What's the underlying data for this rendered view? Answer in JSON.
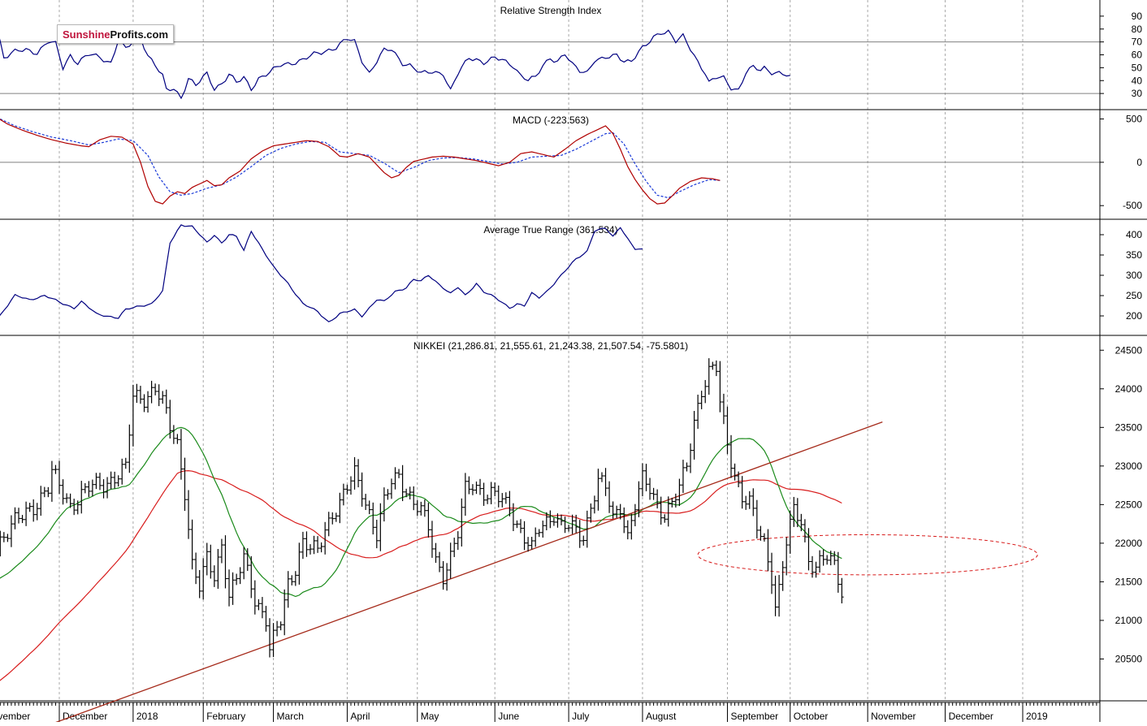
{
  "logo": {
    "part1": "Sunshine",
    "part2": "Profits.com"
  },
  "colors": {
    "price": "#000000",
    "ma_short": "#1a8a1a",
    "ma_long": "#d81c1c",
    "trendline": "#a52a1a",
    "macd": "#b00000",
    "signal": "#1a3ad8",
    "rsi": "#000080",
    "atr": "#000080",
    "grid": "#a8a8a8"
  },
  "x_axis": {
    "months": [
      {
        "label": "ovember",
        "i": -17
      },
      {
        "label": "December",
        "i": 2
      },
      {
        "label": "2018",
        "i": 22
      },
      {
        "label": "February",
        "i": 41
      },
      {
        "label": "March",
        "i": 60
      },
      {
        "label": "April",
        "i": 80
      },
      {
        "label": "May",
        "i": 99
      },
      {
        "label": "June",
        "i": 120
      },
      {
        "label": "July",
        "i": 140
      },
      {
        "label": "August",
        "i": 160
      },
      {
        "label": "September",
        "i": 183
      },
      {
        "label": "October",
        "i": 200
      },
      {
        "label": "November",
        "i": 221
      },
      {
        "label": "December",
        "i": 242
      },
      {
        "label": "2019",
        "i": 263
      }
    ]
  },
  "panels": {
    "rsi": {
      "title": "Relative Strength Index",
      "ticks": [
        90,
        80,
        70,
        60,
        50,
        40,
        30
      ],
      "ylim": [
        20,
        100
      ],
      "levels": [
        70,
        30
      ]
    },
    "macd": {
      "title": "MACD (-223.563)",
      "ticks": [
        500,
        0,
        -500
      ],
      "ylim": [
        -620,
        570
      ],
      "levels": [
        0
      ]
    },
    "atr": {
      "title": "Average True Range (361.534)",
      "ticks": [
        400,
        350,
        300,
        250,
        200
      ],
      "ylim": [
        160,
        430
      ]
    },
    "price": {
      "title": "NIKKEI (21,286.81, 21,555.61, 21,243.38, 21,507.54, -75.5801)",
      "ticks": [
        24500,
        24000,
        23500,
        23000,
        22500,
        22000,
        21500,
        21000,
        20500
      ],
      "ylim": [
        20000,
        24650
      ]
    }
  },
  "chart_data": {
    "type": "line",
    "x_index_range": [
      -15,
      238
    ],
    "trendline": {
      "from": [
        -15,
        19400
      ],
      "to": [
        225,
        23570
      ]
    },
    "ellipse": {
      "center_i": 221,
      "center_y": 21850,
      "half_width_i": 20,
      "half_height": 260
    },
    "price_anchors": [
      [
        0,
        22900
      ],
      [
        5,
        22500
      ],
      [
        10,
        22700
      ],
      [
        15,
        22800
      ],
      [
        20,
        22950
      ],
      [
        22,
        23900
      ],
      [
        25,
        23900
      ],
      [
        28,
        24000
      ],
      [
        30,
        23800
      ],
      [
        32,
        23500
      ],
      [
        34,
        23300
      ],
      [
        36,
        22700
      ],
      [
        38,
        21700
      ],
      [
        40,
        21400
      ],
      [
        42,
        21800
      ],
      [
        44,
        21600
      ],
      [
        46,
        22000
      ],
      [
        48,
        21300
      ],
      [
        50,
        21500
      ],
      [
        52,
        21800
      ],
      [
        54,
        21500
      ],
      [
        55,
        21300
      ],
      [
        58,
        21000
      ],
      [
        59,
        20600
      ],
      [
        62,
        21000
      ],
      [
        64,
        21500
      ],
      [
        66,
        21700
      ],
      [
        68,
        22000
      ],
      [
        70,
        21900
      ],
      [
        72,
        21900
      ],
      [
        74,
        22200
      ],
      [
        76,
        22400
      ],
      [
        78,
        22500
      ],
      [
        80,
        22700
      ],
      [
        82,
        22900
      ],
      [
        84,
        22700
      ],
      [
        86,
        22400
      ],
      [
        88,
        22100
      ],
      [
        90,
        22500
      ],
      [
        92,
        22800
      ],
      [
        94,
        22900
      ],
      [
        96,
        22700
      ],
      [
        98,
        22500
      ],
      [
        100,
        22400
      ],
      [
        102,
        22200
      ],
      [
        104,
        21800
      ],
      [
        106,
        21600
      ],
      [
        108,
        21800
      ],
      [
        110,
        22100
      ],
      [
        112,
        22700
      ],
      [
        114,
        22800
      ],
      [
        116,
        22700
      ],
      [
        118,
        22600
      ],
      [
        120,
        22600
      ],
      [
        122,
        22550
      ],
      [
        124,
        22500
      ],
      [
        126,
        22250
      ],
      [
        128,
        22050
      ],
      [
        130,
        21900
      ],
      [
        132,
        22200
      ],
      [
        134,
        22300
      ],
      [
        136,
        22400
      ],
      [
        138,
        22200
      ],
      [
        140,
        22200
      ],
      [
        142,
        22150
      ],
      [
        144,
        22100
      ],
      [
        146,
        22500
      ],
      [
        148,
        22800
      ],
      [
        150,
        22700
      ],
      [
        152,
        22300
      ],
      [
        154,
        22500
      ],
      [
        156,
        22100
      ],
      [
        158,
        22500
      ],
      [
        160,
        22800
      ],
      [
        162,
        22700
      ],
      [
        164,
        22500
      ],
      [
        166,
        22400
      ],
      [
        168,
        22500
      ],
      [
        170,
        22700
      ],
      [
        172,
        23000
      ],
      [
        174,
        23600
      ],
      [
        176,
        24000
      ],
      [
        178,
        24200
      ],
      [
        180,
        24250
      ],
      [
        181,
        23800
      ],
      [
        183,
        23300
      ],
      [
        185,
        22900
      ],
      [
        187,
        22600
      ],
      [
        189,
        22500
      ],
      [
        191,
        22200
      ],
      [
        193,
        22000
      ],
      [
        195,
        21600
      ],
      [
        196,
        21200
      ],
      [
        197,
        21400
      ],
      [
        199,
        22000
      ],
      [
        201,
        22400
      ],
      [
        203,
        22300
      ],
      [
        205,
        21800
      ],
      [
        207,
        21700
      ],
      [
        210,
        21800
      ],
      [
        212,
        21700
      ],
      [
        214,
        21400
      ]
    ],
    "rsi_anchors": [
      [
        -15,
        82
      ],
      [
        -13,
        58
      ],
      [
        -10,
        62
      ],
      [
        -7,
        64
      ],
      [
        -4,
        62
      ],
      [
        -1,
        70
      ],
      [
        1,
        68
      ],
      [
        3,
        50
      ],
      [
        5,
        60
      ],
      [
        7,
        54
      ],
      [
        10,
        60
      ],
      [
        13,
        58
      ],
      [
        16,
        54
      ],
      [
        18,
        72
      ],
      [
        20,
        64
      ],
      [
        22,
        70
      ],
      [
        24,
        74
      ],
      [
        26,
        60
      ],
      [
        28,
        52
      ],
      [
        30,
        43
      ],
      [
        31,
        32
      ],
      [
        33,
        34
      ],
      [
        35,
        27
      ],
      [
        37,
        42
      ],
      [
        39,
        36
      ],
      [
        42,
        45
      ],
      [
        44,
        34
      ],
      [
        46,
        38
      ],
      [
        48,
        45
      ],
      [
        50,
        38
      ],
      [
        52,
        42
      ],
      [
        54,
        34
      ],
      [
        56,
        42
      ],
      [
        59,
        46
      ],
      [
        62,
        52
      ],
      [
        65,
        54
      ],
      [
        68,
        56
      ],
      [
        71,
        60
      ],
      [
        74,
        63
      ],
      [
        77,
        66
      ],
      [
        80,
        72
      ],
      [
        82,
        70
      ],
      [
        84,
        56
      ],
      [
        86,
        46
      ],
      [
        88,
        55
      ],
      [
        90,
        63
      ],
      [
        92,
        64
      ],
      [
        95,
        54
      ],
      [
        97,
        52
      ],
      [
        100,
        45
      ],
      [
        103,
        47
      ],
      [
        106,
        46
      ],
      [
        108,
        32
      ],
      [
        110,
        45
      ],
      [
        113,
        58
      ],
      [
        115,
        57
      ],
      [
        117,
        54
      ],
      [
        120,
        57
      ],
      [
        122,
        56
      ],
      [
        125,
        52
      ],
      [
        127,
        44
      ],
      [
        129,
        40
      ],
      [
        131,
        42
      ],
      [
        133,
        52
      ],
      [
        135,
        58
      ],
      [
        137,
        55
      ],
      [
        139,
        60
      ],
      [
        141,
        52
      ],
      [
        143,
        48
      ],
      [
        145,
        47
      ],
      [
        147,
        56
      ],
      [
        149,
        56
      ],
      [
        151,
        58
      ],
      [
        153,
        60
      ],
      [
        155,
        56
      ],
      [
        157,
        55
      ],
      [
        159,
        62
      ],
      [
        161,
        67
      ],
      [
        163,
        74
      ],
      [
        165,
        78
      ],
      [
        167,
        78
      ],
      [
        169,
        70
      ],
      [
        171,
        74
      ],
      [
        173,
        65
      ],
      [
        175,
        55
      ],
      [
        177,
        46
      ],
      [
        178,
        38
      ],
      [
        180,
        42
      ],
      [
        182,
        42
      ],
      [
        184,
        35
      ],
      [
        186,
        33
      ],
      [
        188,
        46
      ],
      [
        190,
        50
      ],
      [
        192,
        48
      ],
      [
        193,
        50
      ],
      [
        195,
        47
      ],
      [
        197,
        46
      ],
      [
        199,
        44
      ],
      [
        200,
        42
      ]
    ],
    "macd_anchors": [
      [
        -15,
        520
      ],
      [
        -12,
        440
      ],
      [
        -8,
        370
      ],
      [
        -4,
        310
      ],
      [
        0,
        260
      ],
      [
        4,
        220
      ],
      [
        8,
        190
      ],
      [
        10,
        180
      ],
      [
        13,
        260
      ],
      [
        16,
        300
      ],
      [
        19,
        290
      ],
      [
        22,
        210
      ],
      [
        24,
        0
      ],
      [
        26,
        -280
      ],
      [
        28,
        -450
      ],
      [
        30,
        -480
      ],
      [
        32,
        -390
      ],
      [
        34,
        -340
      ],
      [
        36,
        -360
      ],
      [
        38,
        -290
      ],
      [
        40,
        -250
      ],
      [
        42,
        -210
      ],
      [
        44,
        -270
      ],
      [
        46,
        -260
      ],
      [
        48,
        -180
      ],
      [
        51,
        -100
      ],
      [
        54,
        40
      ],
      [
        57,
        130
      ],
      [
        60,
        190
      ],
      [
        63,
        210
      ],
      [
        66,
        230
      ],
      [
        69,
        250
      ],
      [
        72,
        240
      ],
      [
        75,
        180
      ],
      [
        78,
        70
      ],
      [
        80,
        60
      ],
      [
        83,
        100
      ],
      [
        86,
        60
      ],
      [
        88,
        -30
      ],
      [
        90,
        -120
      ],
      [
        92,
        -180
      ],
      [
        94,
        -150
      ],
      [
        96,
        -60
      ],
      [
        98,
        10
      ],
      [
        100,
        30
      ],
      [
        103,
        60
      ],
      [
        106,
        70
      ],
      [
        109,
        60
      ],
      [
        112,
        40
      ],
      [
        115,
        20
      ],
      [
        118,
        -10
      ],
      [
        121,
        -40
      ],
      [
        124,
        0
      ],
      [
        127,
        100
      ],
      [
        130,
        120
      ],
      [
        133,
        90
      ],
      [
        136,
        60
      ],
      [
        139,
        150
      ],
      [
        142,
        250
      ],
      [
        145,
        320
      ],
      [
        148,
        380
      ],
      [
        150,
        420
      ],
      [
        152,
        330
      ],
      [
        154,
        150
      ],
      [
        156,
        -50
      ],
      [
        158,
        -200
      ],
      [
        160,
        -320
      ],
      [
        162,
        -420
      ],
      [
        164,
        -480
      ],
      [
        166,
        -470
      ],
      [
        168,
        -390
      ],
      [
        170,
        -300
      ],
      [
        173,
        -220
      ],
      [
        176,
        -180
      ],
      [
        179,
        -190
      ],
      [
        181,
        -210
      ]
    ],
    "signal_anchors": [
      [
        -15,
        520
      ],
      [
        -10,
        420
      ],
      [
        -5,
        350
      ],
      [
        0,
        290
      ],
      [
        5,
        250
      ],
      [
        10,
        200
      ],
      [
        14,
        230
      ],
      [
        18,
        270
      ],
      [
        22,
        250
      ],
      [
        26,
        80
      ],
      [
        29,
        -170
      ],
      [
        32,
        -340
      ],
      [
        35,
        -380
      ],
      [
        38,
        -360
      ],
      [
        42,
        -300
      ],
      [
        46,
        -260
      ],
      [
        50,
        -170
      ],
      [
        54,
        -50
      ],
      [
        58,
        80
      ],
      [
        62,
        160
      ],
      [
        66,
        210
      ],
      [
        70,
        240
      ],
      [
        74,
        230
      ],
      [
        78,
        120
      ],
      [
        82,
        100
      ],
      [
        86,
        80
      ],
      [
        90,
        -10
      ],
      [
        94,
        -120
      ],
      [
        98,
        -60
      ],
      [
        102,
        20
      ],
      [
        106,
        50
      ],
      [
        110,
        55
      ],
      [
        114,
        40
      ],
      [
        118,
        10
      ],
      [
        122,
        -20
      ],
      [
        126,
        0
      ],
      [
        130,
        60
      ],
      [
        134,
        70
      ],
      [
        138,
        80
      ],
      [
        142,
        150
      ],
      [
        146,
        240
      ],
      [
        150,
        330
      ],
      [
        152,
        340
      ],
      [
        155,
        210
      ],
      [
        158,
        -20
      ],
      [
        161,
        -220
      ],
      [
        164,
        -380
      ],
      [
        167,
        -410
      ],
      [
        170,
        -340
      ],
      [
        174,
        -260
      ],
      [
        178,
        -200
      ],
      [
        181,
        -210
      ]
    ],
    "atr_anchors": [
      [
        -15,
        190
      ],
      [
        -10,
        250
      ],
      [
        -6,
        240
      ],
      [
        -2,
        250
      ],
      [
        3,
        230
      ],
      [
        6,
        220
      ],
      [
        8,
        235
      ],
      [
        12,
        205
      ],
      [
        15,
        200
      ],
      [
        18,
        195
      ],
      [
        20,
        215
      ],
      [
        24,
        225
      ],
      [
        27,
        230
      ],
      [
        30,
        260
      ],
      [
        32,
        380
      ],
      [
        35,
        425
      ],
      [
        38,
        420
      ],
      [
        40,
        400
      ],
      [
        42,
        380
      ],
      [
        44,
        400
      ],
      [
        46,
        380
      ],
      [
        48,
        400
      ],
      [
        50,
        395
      ],
      [
        52,
        360
      ],
      [
        54,
        410
      ],
      [
        56,
        380
      ],
      [
        60,
        320
      ],
      [
        64,
        280
      ],
      [
        68,
        230
      ],
      [
        72,
        210
      ],
      [
        75,
        185
      ],
      [
        78,
        205
      ],
      [
        82,
        215
      ],
      [
        84,
        200
      ],
      [
        86,
        220
      ],
      [
        88,
        240
      ],
      [
        90,
        235
      ],
      [
        93,
        260
      ],
      [
        96,
        270
      ],
      [
        98,
        290
      ],
      [
        100,
        285
      ],
      [
        102,
        300
      ],
      [
        104,
        285
      ],
      [
        106,
        270
      ],
      [
        108,
        255
      ],
      [
        110,
        270
      ],
      [
        112,
        250
      ],
      [
        115,
        280
      ],
      [
        117,
        260
      ],
      [
        120,
        245
      ],
      [
        124,
        220
      ],
      [
        126,
        230
      ],
      [
        128,
        225
      ],
      [
        130,
        255
      ],
      [
        132,
        245
      ],
      [
        134,
        260
      ],
      [
        136,
        280
      ],
      [
        140,
        320
      ],
      [
        142,
        340
      ],
      [
        145,
        360
      ],
      [
        147,
        410
      ],
      [
        150,
        415
      ],
      [
        152,
        395
      ],
      [
        154,
        420
      ],
      [
        156,
        390
      ],
      [
        158,
        365
      ],
      [
        160,
        362
      ]
    ]
  }
}
